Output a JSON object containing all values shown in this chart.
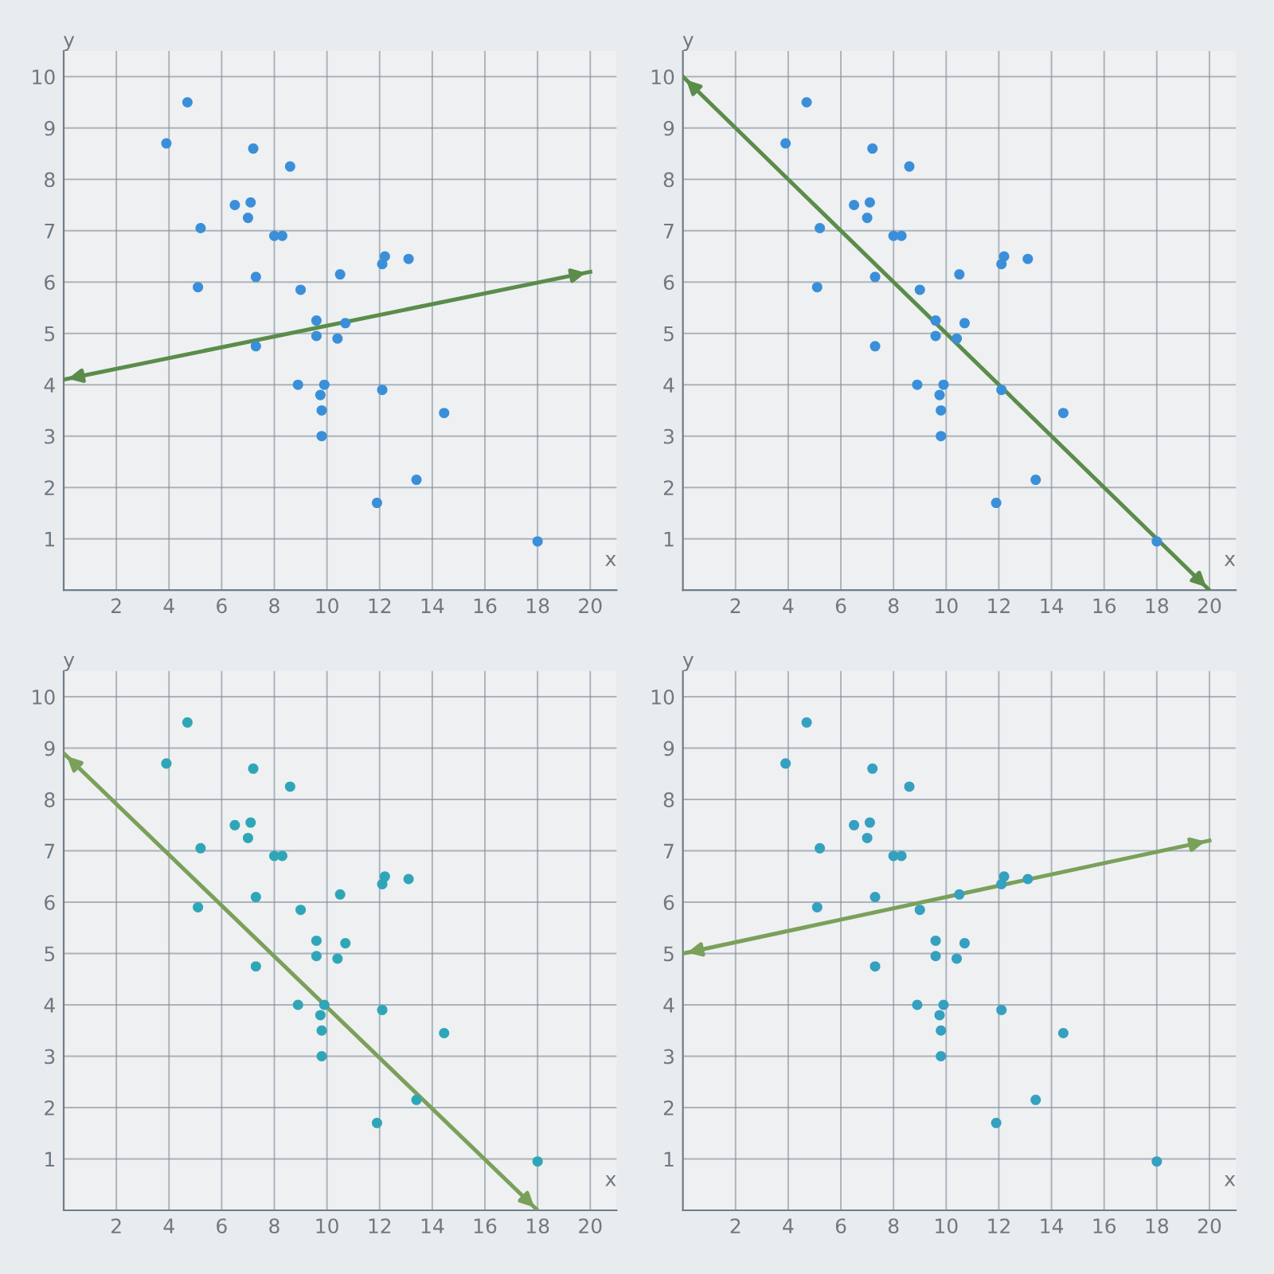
{
  "chart_data": [
    {
      "type": "scatter",
      "xlabel": "x",
      "ylabel": "y",
      "xlim": [
        0,
        21
      ],
      "ylim": [
        0,
        10.5
      ],
      "xticks": [
        2,
        4,
        6,
        8,
        10,
        12,
        14,
        16,
        18,
        20
      ],
      "yticks": [
        1,
        2,
        3,
        4,
        5,
        6,
        7,
        8,
        9,
        10
      ],
      "grid": true,
      "series": [
        {
          "marker": "circle",
          "color": "#3a8fd8",
          "x": [
            4.7,
            3.9,
            7.2,
            8.6,
            6.5,
            7.1,
            7.0,
            5.2,
            8.0,
            8.3,
            7.3,
            5.1,
            9.0,
            10.5,
            12.2,
            12.1,
            13.1,
            9.6,
            9.6,
            10.4,
            10.7,
            7.3,
            8.9,
            9.9,
            9.75,
            9.8,
            9.8,
            12.1,
            14.45,
            13.4,
            11.9,
            18.0
          ],
          "values": [
            9.5,
            8.7,
            8.6,
            8.25,
            7.5,
            7.55,
            7.25,
            7.05,
            6.9,
            6.9,
            6.1,
            5.9,
            5.85,
            6.15,
            6.5,
            6.35,
            6.45,
            5.25,
            4.95,
            4.9,
            5.2,
            4.75,
            4.0,
            4.0,
            3.8,
            3.5,
            3.0,
            3.9,
            3.45,
            2.15,
            1.7,
            0.95
          ]
        },
        {
          "type": "line",
          "marker": "none",
          "color": "#5b8c4a",
          "x": [
            0,
            20
          ],
          "values": [
            4.1,
            6.2
          ]
        }
      ]
    },
    {
      "type": "scatter",
      "xlabel": "x",
      "ylabel": "y",
      "xlim": [
        0,
        21
      ],
      "ylim": [
        0,
        10.5
      ],
      "xticks": [
        2,
        4,
        6,
        8,
        10,
        12,
        14,
        16,
        18,
        20
      ],
      "yticks": [
        1,
        2,
        3,
        4,
        5,
        6,
        7,
        8,
        9,
        10
      ],
      "grid": true,
      "series": [
        {
          "marker": "circle",
          "color": "#3a8fd8",
          "x": [
            4.7,
            3.9,
            7.2,
            8.6,
            6.5,
            7.1,
            7.0,
            5.2,
            8.0,
            8.3,
            7.3,
            5.1,
            9.0,
            10.5,
            12.2,
            12.1,
            13.1,
            9.6,
            9.6,
            10.4,
            10.7,
            7.3,
            8.9,
            9.9,
            9.75,
            9.8,
            9.8,
            12.1,
            14.45,
            13.4,
            11.9,
            18.0
          ],
          "values": [
            9.5,
            8.7,
            8.6,
            8.25,
            7.5,
            7.55,
            7.25,
            7.05,
            6.9,
            6.9,
            6.1,
            5.9,
            5.85,
            6.15,
            6.5,
            6.35,
            6.45,
            5.25,
            4.95,
            4.9,
            5.2,
            4.75,
            4.0,
            4.0,
            3.8,
            3.5,
            3.0,
            3.9,
            3.45,
            2.15,
            1.7,
            0.95
          ]
        },
        {
          "type": "line",
          "marker": "none",
          "color": "#5b8c4a",
          "x": [
            0,
            20
          ],
          "values": [
            10,
            0
          ]
        }
      ]
    },
    {
      "type": "scatter",
      "xlabel": "x",
      "ylabel": "y",
      "xlim": [
        0,
        21
      ],
      "ylim": [
        0,
        10.5
      ],
      "xticks": [
        2,
        4,
        6,
        8,
        10,
        12,
        14,
        16,
        18,
        20
      ],
      "yticks": [
        1,
        2,
        3,
        4,
        5,
        6,
        7,
        8,
        9,
        10
      ],
      "grid": true,
      "series": [
        {
          "marker": "circle",
          "color": "#2fa6b8",
          "x": [
            4.7,
            3.9,
            7.2,
            8.6,
            6.5,
            7.1,
            7.0,
            5.2,
            8.0,
            8.3,
            7.3,
            5.1,
            9.0,
            10.5,
            12.2,
            12.1,
            13.1,
            9.6,
            9.6,
            10.4,
            10.7,
            7.3,
            8.9,
            9.9,
            9.75,
            9.8,
            9.8,
            12.1,
            14.45,
            13.4,
            11.9,
            18.0
          ],
          "values": [
            9.5,
            8.7,
            8.6,
            8.25,
            7.5,
            7.55,
            7.25,
            7.05,
            6.9,
            6.9,
            6.1,
            5.9,
            5.85,
            6.15,
            6.5,
            6.35,
            6.45,
            5.25,
            4.95,
            4.9,
            5.2,
            4.75,
            4.0,
            4.0,
            3.8,
            3.5,
            3.0,
            3.9,
            3.45,
            2.15,
            1.7,
            0.95
          ]
        },
        {
          "type": "line",
          "marker": "none",
          "color": "#7aa05a",
          "x": [
            0,
            18
          ],
          "values": [
            8.9,
            0
          ]
        }
      ]
    },
    {
      "type": "scatter",
      "xlabel": "x",
      "ylabel": "y",
      "xlim": [
        0,
        21
      ],
      "ylim": [
        0,
        10.5
      ],
      "xticks": [
        2,
        4,
        6,
        8,
        10,
        12,
        14,
        16,
        18,
        20
      ],
      "yticks": [
        1,
        2,
        3,
        4,
        5,
        6,
        7,
        8,
        9,
        10
      ],
      "grid": true,
      "series": [
        {
          "marker": "circle",
          "color": "#35a0c0",
          "x": [
            4.7,
            3.9,
            7.2,
            8.6,
            6.5,
            7.1,
            7.0,
            5.2,
            8.0,
            8.3,
            7.3,
            5.1,
            9.0,
            10.5,
            12.2,
            12.1,
            13.1,
            9.6,
            9.6,
            10.4,
            10.7,
            7.3,
            8.9,
            9.9,
            9.75,
            9.8,
            9.8,
            12.1,
            14.45,
            13.4,
            11.9,
            18.0
          ],
          "values": [
            9.5,
            8.7,
            8.6,
            8.25,
            7.5,
            7.55,
            7.25,
            7.05,
            6.9,
            6.9,
            6.1,
            5.9,
            5.85,
            6.15,
            6.5,
            6.35,
            6.45,
            5.25,
            4.95,
            4.9,
            5.2,
            4.75,
            4.0,
            4.0,
            3.8,
            3.5,
            3.0,
            3.9,
            3.45,
            2.15,
            1.7,
            0.95
          ]
        },
        {
          "type": "line",
          "marker": "none",
          "color": "#7aa05a",
          "x": [
            0,
            20
          ],
          "values": [
            5.0,
            7.2
          ]
        }
      ]
    }
  ]
}
